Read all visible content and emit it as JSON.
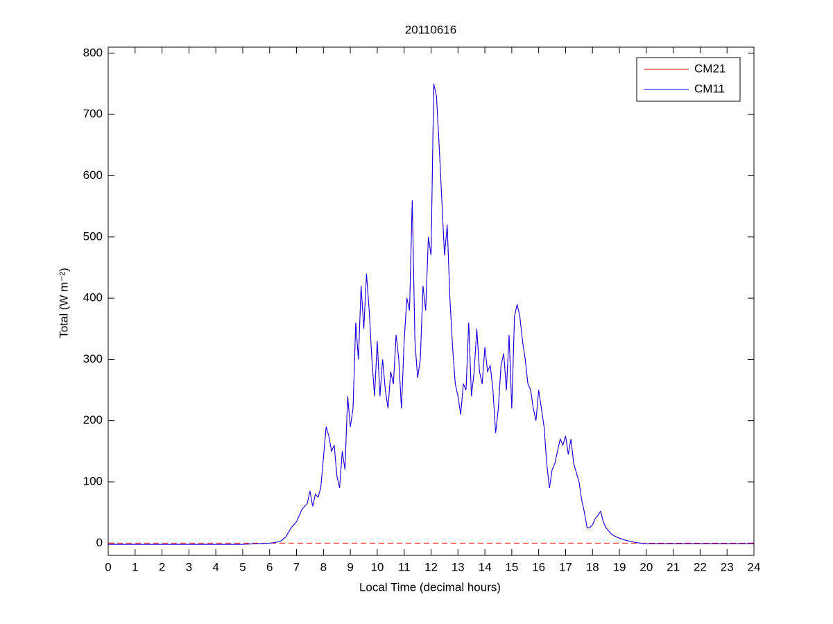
{
  "chart_data": {
    "type": "line",
    "title": "20110616",
    "xlabel": "Local Time (decimal hours)",
    "ylabel": "Total (W m⁻²)",
    "x": [
      0,
      1,
      2,
      3,
      4,
      5,
      6.0,
      6.2,
      6.4,
      6.6,
      6.8,
      7.0,
      7.1,
      7.2,
      7.3,
      7.4,
      7.5,
      7.6,
      7.7,
      7.8,
      7.9,
      8.0,
      8.1,
      8.2,
      8.3,
      8.4,
      8.5,
      8.6,
      8.7,
      8.8,
      8.9,
      9.0,
      9.1,
      9.2,
      9.3,
      9.4,
      9.5,
      9.6,
      9.7,
      9.8,
      9.9,
      10.0,
      10.1,
      10.2,
      10.3,
      10.4,
      10.5,
      10.6,
      10.7,
      10.8,
      10.9,
      11.0,
      11.1,
      11.2,
      11.3,
      11.4,
      11.5,
      11.6,
      11.7,
      11.8,
      11.9,
      12.0,
      12.1,
      12.2,
      12.3,
      12.4,
      12.5,
      12.6,
      12.7,
      12.8,
      12.9,
      13.0,
      13.1,
      13.2,
      13.3,
      13.4,
      13.5,
      13.6,
      13.7,
      13.8,
      13.9,
      14.0,
      14.1,
      14.2,
      14.3,
      14.4,
      14.5,
      14.6,
      14.7,
      14.8,
      14.9,
      15.0,
      15.1,
      15.2,
      15.3,
      15.4,
      15.5,
      15.6,
      15.7,
      15.8,
      15.9,
      16.0,
      16.1,
      16.2,
      16.3,
      16.4,
      16.5,
      16.6,
      16.7,
      16.8,
      16.9,
      17.0,
      17.1,
      17.2,
      17.3,
      17.4,
      17.5,
      17.6,
      17.7,
      17.8,
      17.9,
      18.0,
      18.1,
      18.2,
      18.3,
      18.4,
      18.5,
      18.6,
      18.7,
      18.8,
      18.9,
      19.0,
      19.2,
      19.4,
      19.6,
      19.8,
      20,
      21,
      22,
      23,
      24
    ],
    "series": [
      {
        "name": "CM21",
        "color": "#ff0000",
        "values": [
          -2,
          -2,
          -2,
          -2,
          -2,
          -2,
          0,
          1,
          3,
          10,
          25,
          35,
          45,
          55,
          60,
          65,
          85,
          60,
          80,
          75,
          90,
          140,
          190,
          175,
          150,
          160,
          110,
          90,
          150,
          120,
          240,
          190,
          220,
          360,
          300,
          420,
          350,
          440,
          380,
          300,
          240,
          330,
          240,
          300,
          250,
          220,
          280,
          260,
          340,
          300,
          220,
          330,
          400,
          380,
          560,
          330,
          270,
          300,
          420,
          380,
          500,
          470,
          750,
          730,
          650,
          560,
          470,
          520,
          400,
          320,
          260,
          240,
          210,
          260,
          250,
          360,
          240,
          280,
          350,
          280,
          260,
          320,
          280,
          290,
          250,
          180,
          220,
          290,
          310,
          250,
          340,
          220,
          370,
          390,
          370,
          330,
          300,
          260,
          250,
          220,
          200,
          250,
          220,
          190,
          130,
          90,
          120,
          130,
          150,
          170,
          160,
          175,
          145,
          170,
          130,
          115,
          100,
          70,
          50,
          25,
          25,
          30,
          40,
          45,
          52,
          35,
          25,
          20,
          15,
          12,
          10,
          8,
          5,
          3,
          1,
          0,
          -1,
          -1,
          -1,
          -1,
          -1
        ]
      },
      {
        "name": "CM11",
        "color": "#0000ff",
        "values": [
          -2,
          -2,
          -2,
          -2,
          -2,
          -2,
          0,
          1,
          3,
          10,
          25,
          35,
          45,
          55,
          60,
          65,
          85,
          60,
          80,
          75,
          90,
          140,
          190,
          175,
          150,
          160,
          110,
          90,
          150,
          120,
          240,
          190,
          220,
          360,
          300,
          420,
          350,
          440,
          380,
          300,
          240,
          330,
          240,
          300,
          250,
          220,
          280,
          260,
          340,
          300,
          220,
          330,
          400,
          380,
          560,
          330,
          270,
          300,
          420,
          380,
          500,
          470,
          750,
          730,
          650,
          560,
          470,
          520,
          400,
          320,
          260,
          240,
          210,
          260,
          250,
          360,
          240,
          280,
          350,
          280,
          260,
          320,
          280,
          290,
          250,
          180,
          220,
          290,
          310,
          250,
          340,
          220,
          370,
          390,
          370,
          330,
          300,
          260,
          250,
          220,
          200,
          250,
          220,
          190,
          130,
          90,
          120,
          130,
          150,
          170,
          160,
          175,
          145,
          170,
          130,
          115,
          100,
          70,
          50,
          25,
          25,
          30,
          40,
          45,
          52,
          35,
          25,
          20,
          15,
          12,
          10,
          8,
          5,
          3,
          1,
          0,
          -1,
          -1,
          -1,
          -1,
          -1
        ]
      }
    ],
    "reference_lines": [
      {
        "y": 0,
        "color": "#ff0000",
        "style": "dashed"
      }
    ],
    "xlim": [
      0,
      24
    ],
    "xticks": [
      0,
      1,
      2,
      3,
      4,
      5,
      6,
      7,
      8,
      9,
      10,
      11,
      12,
      13,
      14,
      15,
      16,
      17,
      18,
      19,
      20,
      21,
      22,
      23,
      24
    ],
    "ylim": [
      -20,
      810
    ],
    "yticks": [
      0,
      100,
      200,
      300,
      400,
      500,
      600,
      700,
      800
    ],
    "legend": "top-right"
  }
}
